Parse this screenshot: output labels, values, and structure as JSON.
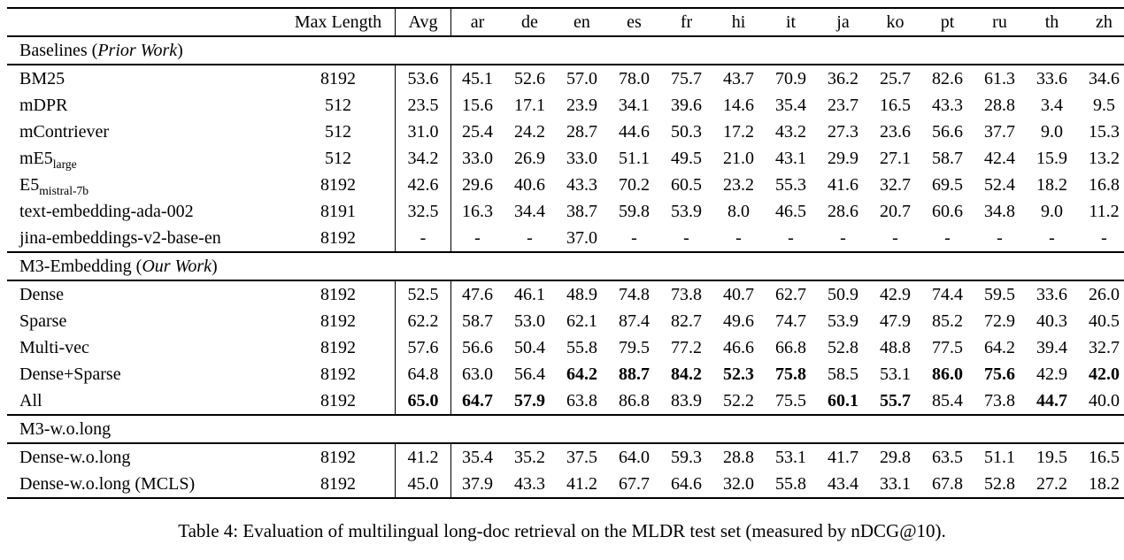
{
  "caption": "Table 4: Evaluation of multilingual long-doc retrieval on the MLDR test set (measured by nDCG@10).",
  "table": {
    "columns": [
      "Max Length",
      "Avg"
    ],
    "lang_columns": [
      "ar",
      "de",
      "en",
      "es",
      "fr",
      "hi",
      "it",
      "ja",
      "ko",
      "pt",
      "ru",
      "th",
      "zh"
    ],
    "sections": [
      {
        "title": {
          "pre": "Baselines (",
          "italic": "Prior Work",
          "post": ")"
        },
        "rows": [
          {
            "name": "BM25",
            "sub": "",
            "max_length": "8192",
            "avg": "53.6",
            "avg_bold": false,
            "bold": [],
            "values": [
              "45.1",
              "52.6",
              "57.0",
              "78.0",
              "75.7",
              "43.7",
              "70.9",
              "36.2",
              "25.7",
              "82.6",
              "61.3",
              "33.6",
              "34.6"
            ]
          },
          {
            "name": "mDPR",
            "sub": "",
            "max_length": "512",
            "avg": "23.5",
            "avg_bold": false,
            "bold": [],
            "values": [
              "15.6",
              "17.1",
              "23.9",
              "34.1",
              "39.6",
              "14.6",
              "35.4",
              "23.7",
              "16.5",
              "43.3",
              "28.8",
              "3.4",
              "9.5"
            ]
          },
          {
            "name": "mContriever",
            "sub": "",
            "max_length": "512",
            "avg": "31.0",
            "avg_bold": false,
            "bold": [],
            "values": [
              "25.4",
              "24.2",
              "28.7",
              "44.6",
              "50.3",
              "17.2",
              "43.2",
              "27.3",
              "23.6",
              "56.6",
              "37.7",
              "9.0",
              "15.3"
            ]
          },
          {
            "name": "mE5",
            "sub": "large",
            "max_length": "512",
            "avg": "34.2",
            "avg_bold": false,
            "bold": [],
            "values": [
              "33.0",
              "26.9",
              "33.0",
              "51.1",
              "49.5",
              "21.0",
              "43.1",
              "29.9",
              "27.1",
              "58.7",
              "42.4",
              "15.9",
              "13.2"
            ]
          },
          {
            "name": "E5",
            "sub": "mistral-7b",
            "max_length": "8192",
            "avg": "42.6",
            "avg_bold": false,
            "bold": [],
            "values": [
              "29.6",
              "40.6",
              "43.3",
              "70.2",
              "60.5",
              "23.2",
              "55.3",
              "41.6",
              "32.7",
              "69.5",
              "52.4",
              "18.2",
              "16.8"
            ]
          },
          {
            "name": "text-embedding-ada-002",
            "sub": "",
            "max_length": "8191",
            "avg": "32.5",
            "avg_bold": false,
            "bold": [],
            "values": [
              "16.3",
              "34.4",
              "38.7",
              "59.8",
              "53.9",
              "8.0",
              "46.5",
              "28.6",
              "20.7",
              "60.6",
              "34.8",
              "9.0",
              "11.2"
            ]
          },
          {
            "name": "jina-embeddings-v2-base-en",
            "sub": "",
            "max_length": "8192",
            "avg": "-",
            "avg_bold": false,
            "bold": [],
            "values": [
              "-",
              "-",
              "37.0",
              "-",
              "-",
              "-",
              "-",
              "-",
              "-",
              "-",
              "-",
              "-",
              "-"
            ]
          }
        ]
      },
      {
        "title": {
          "pre": "M3-Embedding (",
          "italic": "Our Work",
          "post": ")"
        },
        "rows": [
          {
            "name": "Dense",
            "sub": "",
            "max_length": "8192",
            "avg": "52.5",
            "avg_bold": false,
            "bold": [],
            "values": [
              "47.6",
              "46.1",
              "48.9",
              "74.8",
              "73.8",
              "40.7",
              "62.7",
              "50.9",
              "42.9",
              "74.4",
              "59.5",
              "33.6",
              "26.0"
            ]
          },
          {
            "name": "Sparse",
            "sub": "",
            "max_length": "8192",
            "avg": "62.2",
            "avg_bold": false,
            "bold": [],
            "values": [
              "58.7",
              "53.0",
              "62.1",
              "87.4",
              "82.7",
              "49.6",
              "74.7",
              "53.9",
              "47.9",
              "85.2",
              "72.9",
              "40.3",
              "40.5"
            ]
          },
          {
            "name": "Multi-vec",
            "sub": "",
            "max_length": "8192",
            "avg": "57.6",
            "avg_bold": false,
            "bold": [],
            "values": [
              "56.6",
              "50.4",
              "55.8",
              "79.5",
              "77.2",
              "46.6",
              "66.8",
              "52.8",
              "48.8",
              "77.5",
              "64.2",
              "39.4",
              "32.7"
            ]
          },
          {
            "name": "Dense+Sparse",
            "sub": "",
            "max_length": "8192",
            "avg": "64.8",
            "avg_bold": false,
            "bold": [
              2,
              3,
              4,
              5,
              6,
              9,
              10,
              12
            ],
            "values": [
              "63.0",
              "56.4",
              "64.2",
              "88.7",
              "84.2",
              "52.3",
              "75.8",
              "58.5",
              "53.1",
              "86.0",
              "75.6",
              "42.9",
              "42.0"
            ]
          },
          {
            "name": "All",
            "sub": "",
            "max_length": "8192",
            "avg": "65.0",
            "avg_bold": true,
            "bold": [
              0,
              1,
              7,
              8,
              11
            ],
            "values": [
              "64.7",
              "57.9",
              "63.8",
              "86.8",
              "83.9",
              "52.2",
              "75.5",
              "60.1",
              "55.7",
              "85.4",
              "73.8",
              "44.7",
              "40.0"
            ]
          }
        ]
      },
      {
        "title": {
          "pre": "M3-w.o.long",
          "italic": "",
          "post": ""
        },
        "rows": [
          {
            "name": "Dense-w.o.long",
            "sub": "",
            "max_length": "8192",
            "avg": "41.2",
            "avg_bold": false,
            "bold": [],
            "values": [
              "35.4",
              "35.2",
              "37.5",
              "64.0",
              "59.3",
              "28.8",
              "53.1",
              "41.7",
              "29.8",
              "63.5",
              "51.1",
              "19.5",
              "16.5"
            ]
          },
          {
            "name": "Dense-w.o.long (MCLS)",
            "sub": "",
            "max_length": "8192",
            "avg": "45.0",
            "avg_bold": false,
            "bold": [],
            "values": [
              "37.9",
              "43.3",
              "41.2",
              "67.7",
              "64.6",
              "32.0",
              "55.8",
              "43.4",
              "33.1",
              "67.8",
              "52.8",
              "27.2",
              "18.2"
            ]
          }
        ]
      }
    ]
  }
}
